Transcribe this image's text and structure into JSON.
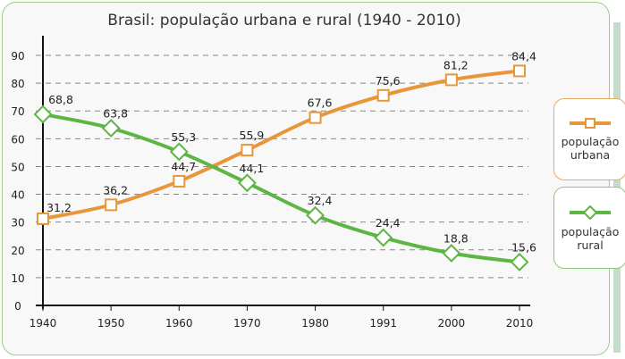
{
  "chart_data": {
    "type": "line",
    "title": "Brasil: população urbana e rural (1940 - 2010)",
    "categories": [
      "1940",
      "1950",
      "1960",
      "1970",
      "1980",
      "1991",
      "2000",
      "2010"
    ],
    "ylim": [
      0,
      90
    ],
    "yticks": [
      0,
      10,
      20,
      30,
      40,
      50,
      60,
      70,
      80,
      90
    ],
    "grid": "horizontal dashed",
    "legend_position": "right",
    "series": [
      {
        "name": "população urbana",
        "color": "#e8963a",
        "marker": "square",
        "values": [
          31.2,
          36.2,
          44.7,
          55.9,
          67.6,
          75.6,
          81.2,
          84.4
        ],
        "labels": [
          "31,2",
          "36,2",
          "44,7",
          "55,9",
          "67,6",
          "75,6",
          "81,2",
          "84,4"
        ]
      },
      {
        "name": "população rural",
        "color": "#5db544",
        "marker": "diamond",
        "values": [
          68.8,
          63.8,
          55.3,
          44.1,
          32.4,
          24.4,
          18.8,
          15.6
        ],
        "labels": [
          "68,8",
          "63,8",
          "55,3",
          "44,1",
          "32,4",
          "24,4",
          "18,8",
          "15,6"
        ]
      }
    ]
  },
  "legend": {
    "urban_line1": "população",
    "urban_line2": "urbana",
    "rural_line1": "população",
    "rural_line2": "rural"
  }
}
